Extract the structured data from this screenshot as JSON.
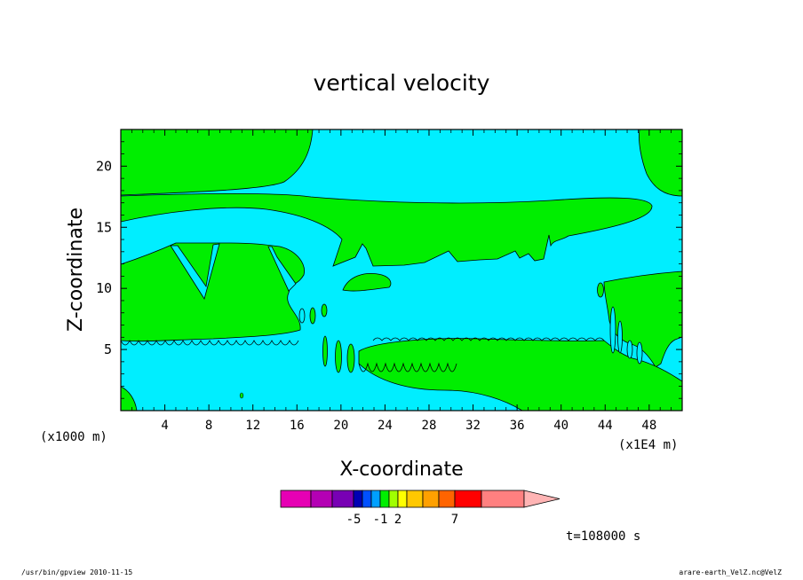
{
  "chart_data": {
    "type": "filled-contour",
    "title": "vertical velocity",
    "xlabel": "X-coordinate",
    "ylabel": "Z-coordinate",
    "x_unit_left": "(x1000 m)",
    "x_unit_right": "(x1E4 m)",
    "x_ticks": [
      "4",
      "8",
      "12",
      "16",
      "20",
      "24",
      "28",
      "32",
      "36",
      "40",
      "44",
      "48"
    ],
    "y_ticks": [
      "5",
      "10",
      "15",
      "20"
    ],
    "xlim": [
      0,
      51
    ],
    "ylim": [
      0,
      23
    ],
    "regions": [
      {
        "level": "positive",
        "color": "#00ee00"
      },
      {
        "level": "negative",
        "color": "#00eeff"
      }
    ],
    "colorbar": {
      "colors": [
        "#e600b4",
        "#b400b4",
        "#7800b4",
        "#0000b4",
        "#0050ff",
        "#00a0ff",
        "#00ee00",
        "#a0ff00",
        "#ffff00",
        "#ffc800",
        "#ffa000",
        "#ff6400",
        "#ff0000",
        "#ff8080",
        "#ffb4b4"
      ],
      "tick_labels": [
        {
          "label": "-5",
          "after_index": 2
        },
        {
          "label": "-1",
          "after_index": 5
        },
        {
          "label": "2",
          "after_index": 7
        },
        {
          "label": "7",
          "after_index": 11
        }
      ]
    },
    "time_label": "t=108000 s"
  },
  "footer": {
    "left": "/usr/bin/gpview   2010-11-15",
    "right": "arare-earth_VelZ.nc@VelZ"
  }
}
